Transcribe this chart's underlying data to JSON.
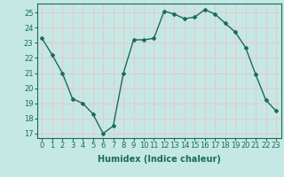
{
  "x": [
    0,
    1,
    2,
    3,
    4,
    5,
    6,
    7,
    8,
    9,
    10,
    11,
    12,
    13,
    14,
    15,
    16,
    17,
    18,
    19,
    20,
    21,
    22,
    23
  ],
  "y": [
    23.3,
    22.2,
    21.0,
    19.3,
    19.0,
    18.3,
    17.0,
    17.5,
    21.0,
    23.2,
    23.2,
    23.3,
    25.1,
    24.9,
    24.6,
    24.7,
    25.2,
    24.9,
    24.3,
    23.7,
    22.7,
    20.9,
    19.2,
    18.5
  ],
  "line_color": "#1a6b5a",
  "marker": "D",
  "markersize": 2.0,
  "linewidth": 1.0,
  "bg_color": "#c5e8e5",
  "grid_color": "#e8c8c8",
  "xlabel": "Humidex (Indice chaleur)",
  "ylabel": "",
  "xlim": [
    -0.5,
    23.5
  ],
  "ylim": [
    16.7,
    25.6
  ],
  "xticks": [
    0,
    1,
    2,
    3,
    4,
    5,
    6,
    7,
    8,
    9,
    10,
    11,
    12,
    13,
    14,
    15,
    16,
    17,
    18,
    19,
    20,
    21,
    22,
    23
  ],
  "yticks": [
    17,
    18,
    19,
    20,
    21,
    22,
    23,
    24,
    25
  ],
  "tick_color": "#1a6b5a",
  "label_color": "#1a6b5a",
  "xlabel_fontsize": 7.0,
  "tick_fontsize": 6.0
}
